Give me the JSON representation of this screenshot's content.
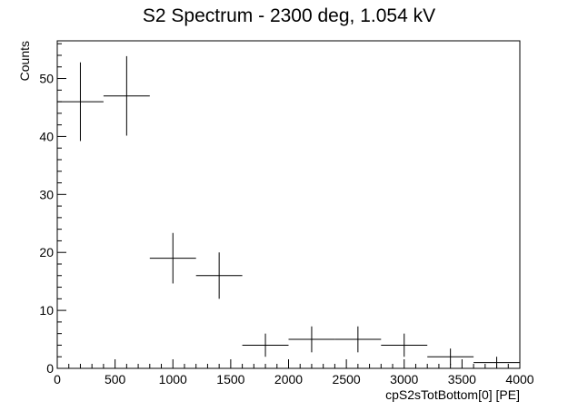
{
  "chart_data": {
    "type": "histogram",
    "title": "S2 Spectrum - 2300 deg, 1.054 kV",
    "xlabel": "cpS2sTotBottom[0] [PE]",
    "ylabel": "Counts",
    "xlim": [
      0,
      4000
    ],
    "ylim": [
      0,
      56.5
    ],
    "grid": false,
    "legend": "none",
    "xticks": [
      0,
      500,
      1000,
      1500,
      2000,
      2500,
      3000,
      3500,
      4000
    ],
    "yticks": [
      0,
      10,
      20,
      30,
      40,
      50
    ],
    "bin_width": 400,
    "bins": [
      {
        "x": 200,
        "y": 46
      },
      {
        "x": 600,
        "y": 47
      },
      {
        "x": 1000,
        "y": 19
      },
      {
        "x": 1400,
        "y": 16
      },
      {
        "x": 1800,
        "y": 4
      },
      {
        "x": 2200,
        "y": 5
      },
      {
        "x": 2600,
        "y": 5
      },
      {
        "x": 3000,
        "y": 4
      },
      {
        "x": 3400,
        "y": 2
      },
      {
        "x": 3800,
        "y": 1
      }
    ]
  }
}
